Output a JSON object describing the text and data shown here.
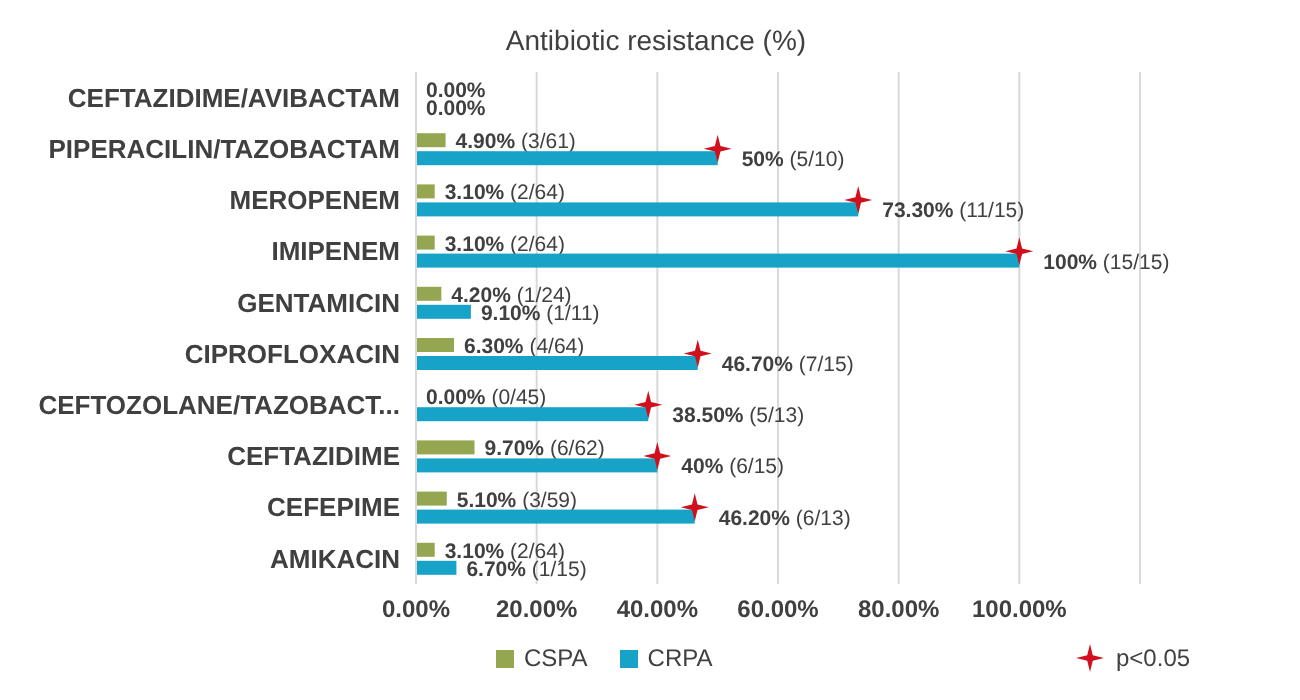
{
  "chart_data": {
    "type": "bar",
    "orientation": "horizontal",
    "title": "Antibiotic resistance  (%)",
    "categories": [
      "CEFTAZIDIME/AVIBACTAM",
      "PIPERACILIN/TAZOBACTAM",
      "MEROPENEM",
      "IMIPENEM",
      "GENTAMICIN",
      "CIPROFLOXACIN",
      "CEFTOZOLANE/TAZOBACT...",
      "CEFTAZIDIME",
      "CEFEPIME",
      "AMIKACIN"
    ],
    "series": [
      {
        "name": "CSPA",
        "color": "#94a650",
        "values": [
          0,
          4.9,
          3.1,
          3.1,
          4.2,
          6.3,
          0,
          9.7,
          5.1,
          3.1
        ],
        "value_labels": [
          "0.00%",
          "4.90% (3/61)",
          "3.10% (2/64)",
          "3.10% (2/64)",
          "4.20% (1/24)",
          "6.30% (4/64)",
          "0.00% (0/45)",
          "9.70% (6/62)",
          "5.10% (3/59)",
          "3.10% (2/64)"
        ]
      },
      {
        "name": "CRPA",
        "color": "#17a3c8",
        "values": [
          0,
          50,
          73.3,
          100,
          9.1,
          46.7,
          38.5,
          40,
          46.2,
          6.7
        ],
        "value_labels": [
          "0.00%",
          "50% (5/10)",
          "73.30% (11/15)",
          "100% (15/15)",
          "9.10% (1/11)",
          "46.70% (7/15)",
          "38.50% (5/13)",
          "40% (6/15)",
          "46.20% (6/13)",
          "6.70% (1/15)"
        ]
      },
      {
        "name": "p<0.05",
        "type": "scatter",
        "marker": "star",
        "color": "#d0101c",
        "values": [
          null,
          50,
          73.3,
          100,
          null,
          46.7,
          38.5,
          40,
          46.2,
          null
        ]
      }
    ],
    "xlim": [
      0,
      120
    ],
    "xticks": [
      {
        "value": 0,
        "label": "0.00%"
      },
      {
        "value": 20,
        "label": "20.00%"
      },
      {
        "value": 40,
        "label": "40.00%"
      },
      {
        "value": 60,
        "label": "60.00%"
      },
      {
        "value": 80,
        "label": "80.00%"
      },
      {
        "value": 100,
        "label": "100.00%"
      },
      {
        "value": 120,
        "label": null
      }
    ],
    "grid": "x",
    "legend": "bottom"
  }
}
